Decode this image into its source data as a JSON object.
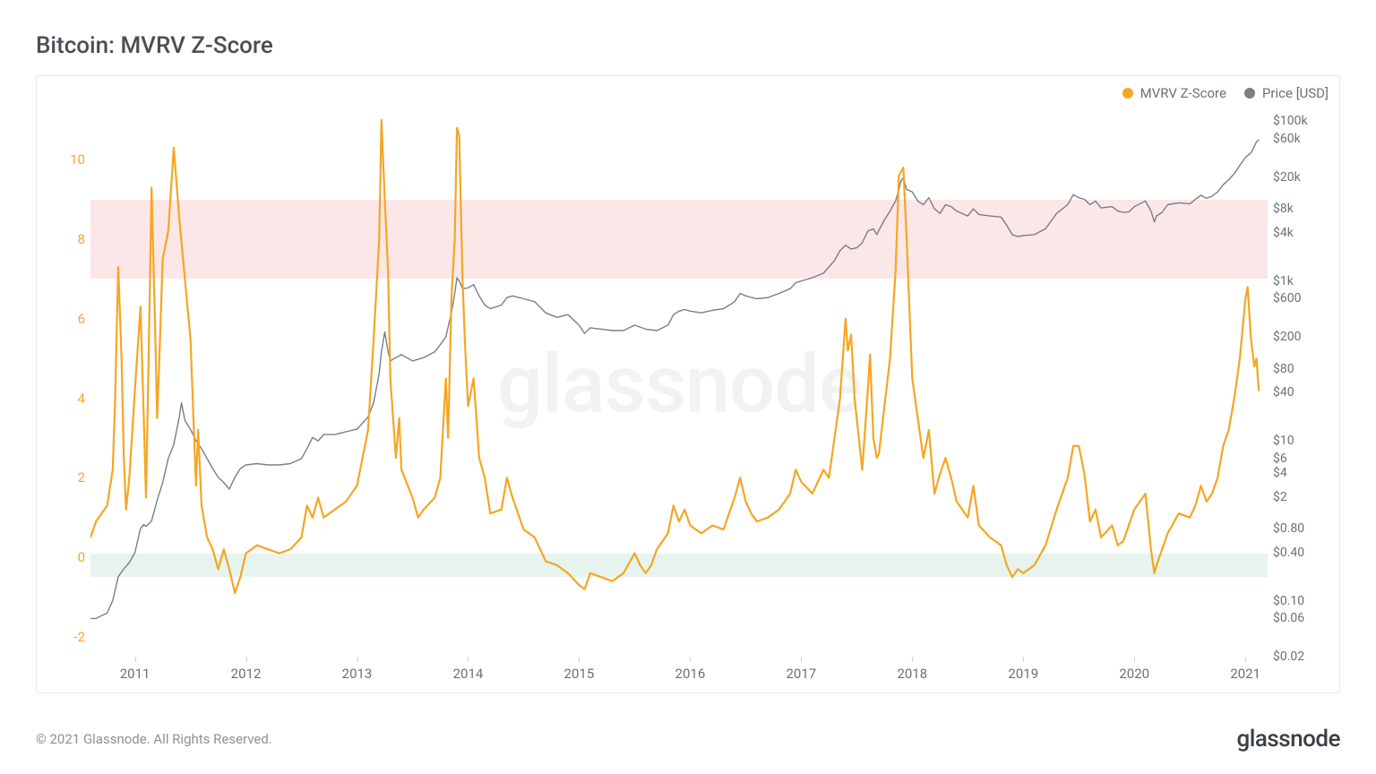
{
  "title": "Bitcoin: MVRV Z-Score",
  "copyright": "© 2021 Glassnode. All Rights Reserved.",
  "brand": "glassnode",
  "watermark": "glassnode",
  "legend": {
    "series1": {
      "label": "MVRV Z-Score",
      "color": "#f5a623"
    },
    "series2": {
      "label": "Price [USD]",
      "color": "#7a7f86"
    }
  },
  "chart": {
    "type": "dual-axis-line",
    "background": "#ffffff",
    "border_color": "#e8eaee",
    "x_axis": {
      "min_year": 2010.6,
      "max_year": 2021.2,
      "ticks": [
        2011,
        2012,
        2013,
        2014,
        2015,
        2016,
        2017,
        2018,
        2019,
        2020,
        2021
      ]
    },
    "left_axis": {
      "color": "#f5a623",
      "min": -2.5,
      "max": 11.2,
      "ticks": [
        -2,
        0,
        2,
        4,
        6,
        8,
        10
      ]
    },
    "right_axis": {
      "color": "#6a7078",
      "type": "log",
      "min": 0.02,
      "max": 130000,
      "ticks": [
        {
          "v": 0.02,
          "l": "$0.02"
        },
        {
          "v": 0.06,
          "l": "$0.06"
        },
        {
          "v": 0.1,
          "l": "$0.10"
        },
        {
          "v": 0.4,
          "l": "$0.40"
        },
        {
          "v": 0.8,
          "l": "$0.80"
        },
        {
          "v": 2,
          "l": "$2"
        },
        {
          "v": 4,
          "l": "$4"
        },
        {
          "v": 6,
          "l": "$6"
        },
        {
          "v": 10,
          "l": "$10"
        },
        {
          "v": 40,
          "l": "$40"
        },
        {
          "v": 80,
          "l": "$80"
        },
        {
          "v": 200,
          "l": "$200"
        },
        {
          "v": 600,
          "l": "$600"
        },
        {
          "v": 1000,
          "l": "$1k"
        },
        {
          "v": 4000,
          "l": "$4k"
        },
        {
          "v": 8000,
          "l": "$8k"
        },
        {
          "v": 20000,
          "l": "$20k"
        },
        {
          "v": 60000,
          "l": "$60k"
        },
        {
          "v": 100000,
          "l": "$100k"
        }
      ]
    },
    "zones": [
      {
        "axis": "left",
        "from": 7.0,
        "to": 9.0,
        "color": "#fbe7e7"
      },
      {
        "axis": "left",
        "from": -0.5,
        "to": 0.1,
        "color": "#e6f4ed"
      }
    ],
    "mvrv_color": "#f5a623",
    "mvrv_line_width": 2.2,
    "mvrv": [
      [
        2010.6,
        0.5
      ],
      [
        2010.65,
        0.9
      ],
      [
        2010.7,
        1.1
      ],
      [
        2010.75,
        1.3
      ],
      [
        2010.8,
        2.2
      ],
      [
        2010.82,
        3.8
      ],
      [
        2010.85,
        7.3
      ],
      [
        2010.88,
        5.0
      ],
      [
        2010.9,
        2.5
      ],
      [
        2010.92,
        1.2
      ],
      [
        2010.95,
        2.0
      ],
      [
        2011.0,
        4.2
      ],
      [
        2011.05,
        6.3
      ],
      [
        2011.08,
        3.5
      ],
      [
        2011.1,
        1.5
      ],
      [
        2011.12,
        4.5
      ],
      [
        2011.15,
        9.3
      ],
      [
        2011.18,
        6.0
      ],
      [
        2011.2,
        3.5
      ],
      [
        2011.22,
        5.0
      ],
      [
        2011.25,
        7.5
      ],
      [
        2011.3,
        8.2
      ],
      [
        2011.35,
        10.3
      ],
      [
        2011.4,
        8.5
      ],
      [
        2011.45,
        7.0
      ],
      [
        2011.5,
        5.5
      ],
      [
        2011.55,
        1.8
      ],
      [
        2011.57,
        3.2
      ],
      [
        2011.6,
        1.3
      ],
      [
        2011.65,
        0.5
      ],
      [
        2011.7,
        0.2
      ],
      [
        2011.75,
        -0.3
      ],
      [
        2011.8,
        0.2
      ],
      [
        2011.85,
        -0.3
      ],
      [
        2011.9,
        -0.9
      ],
      [
        2011.95,
        -0.5
      ],
      [
        2012.0,
        0.1
      ],
      [
        2012.1,
        0.3
      ],
      [
        2012.2,
        0.2
      ],
      [
        2012.3,
        0.1
      ],
      [
        2012.4,
        0.2
      ],
      [
        2012.5,
        0.5
      ],
      [
        2012.55,
        1.3
      ],
      [
        2012.6,
        1.0
      ],
      [
        2012.65,
        1.5
      ],
      [
        2012.7,
        1.0
      ],
      [
        2012.8,
        1.2
      ],
      [
        2012.9,
        1.4
      ],
      [
        2013.0,
        1.8
      ],
      [
        2013.05,
        2.5
      ],
      [
        2013.1,
        3.2
      ],
      [
        2013.15,
        5.5
      ],
      [
        2013.2,
        8.0
      ],
      [
        2013.22,
        11.0
      ],
      [
        2013.25,
        9.0
      ],
      [
        2013.28,
        7.2
      ],
      [
        2013.3,
        4.5
      ],
      [
        2013.35,
        2.5
      ],
      [
        2013.38,
        3.5
      ],
      [
        2013.4,
        2.2
      ],
      [
        2013.5,
        1.5
      ],
      [
        2013.55,
        1.0
      ],
      [
        2013.6,
        1.2
      ],
      [
        2013.7,
        1.5
      ],
      [
        2013.75,
        2.0
      ],
      [
        2013.8,
        4.5
      ],
      [
        2013.82,
        3.0
      ],
      [
        2013.85,
        6.5
      ],
      [
        2013.88,
        8.0
      ],
      [
        2013.9,
        10.8
      ],
      [
        2013.92,
        10.6
      ],
      [
        2013.95,
        7.0
      ],
      [
        2013.97,
        5.5
      ],
      [
        2014.0,
        3.8
      ],
      [
        2014.05,
        4.5
      ],
      [
        2014.1,
        2.5
      ],
      [
        2014.15,
        2.0
      ],
      [
        2014.2,
        1.1
      ],
      [
        2014.3,
        1.2
      ],
      [
        2014.35,
        2.0
      ],
      [
        2014.4,
        1.5
      ],
      [
        2014.5,
        0.7
      ],
      [
        2014.6,
        0.5
      ],
      [
        2014.7,
        -0.1
      ],
      [
        2014.8,
        -0.2
      ],
      [
        2014.9,
        -0.4
      ],
      [
        2015.0,
        -0.7
      ],
      [
        2015.05,
        -0.8
      ],
      [
        2015.1,
        -0.4
      ],
      [
        2015.2,
        -0.5
      ],
      [
        2015.3,
        -0.6
      ],
      [
        2015.4,
        -0.4
      ],
      [
        2015.5,
        0.1
      ],
      [
        2015.55,
        -0.2
      ],
      [
        2015.6,
        -0.4
      ],
      [
        2015.65,
        -0.2
      ],
      [
        2015.7,
        0.2
      ],
      [
        2015.8,
        0.6
      ],
      [
        2015.85,
        1.3
      ],
      [
        2015.9,
        0.9
      ],
      [
        2015.95,
        1.2
      ],
      [
        2016.0,
        0.8
      ],
      [
        2016.1,
        0.6
      ],
      [
        2016.2,
        0.8
      ],
      [
        2016.3,
        0.7
      ],
      [
        2016.4,
        1.5
      ],
      [
        2016.45,
        2.0
      ],
      [
        2016.5,
        1.4
      ],
      [
        2016.55,
        1.1
      ],
      [
        2016.6,
        0.9
      ],
      [
        2016.7,
        1.0
      ],
      [
        2016.8,
        1.2
      ],
      [
        2016.9,
        1.6
      ],
      [
        2016.95,
        2.2
      ],
      [
        2017.0,
        1.9
      ],
      [
        2017.1,
        1.6
      ],
      [
        2017.2,
        2.2
      ],
      [
        2017.25,
        2.0
      ],
      [
        2017.3,
        3.0
      ],
      [
        2017.35,
        4.0
      ],
      [
        2017.4,
        6.0
      ],
      [
        2017.42,
        5.2
      ],
      [
        2017.45,
        5.6
      ],
      [
        2017.48,
        4.0
      ],
      [
        2017.5,
        3.5
      ],
      [
        2017.55,
        2.2
      ],
      [
        2017.6,
        4.2
      ],
      [
        2017.62,
        5.1
      ],
      [
        2017.65,
        3.0
      ],
      [
        2017.68,
        2.5
      ],
      [
        2017.7,
        2.6
      ],
      [
        2017.75,
        3.8
      ],
      [
        2017.8,
        5.0
      ],
      [
        2017.85,
        7.2
      ],
      [
        2017.88,
        9.6
      ],
      [
        2017.92,
        9.8
      ],
      [
        2017.95,
        8.0
      ],
      [
        2018.0,
        4.5
      ],
      [
        2018.05,
        3.5
      ],
      [
        2018.1,
        2.5
      ],
      [
        2018.15,
        3.2
      ],
      [
        2018.2,
        1.6
      ],
      [
        2018.25,
        2.1
      ],
      [
        2018.3,
        2.5
      ],
      [
        2018.35,
        2.0
      ],
      [
        2018.4,
        1.4
      ],
      [
        2018.5,
        1.0
      ],
      [
        2018.55,
        1.8
      ],
      [
        2018.6,
        0.8
      ],
      [
        2018.7,
        0.5
      ],
      [
        2018.8,
        0.3
      ],
      [
        2018.85,
        -0.2
      ],
      [
        2018.9,
        -0.5
      ],
      [
        2018.95,
        -0.3
      ],
      [
        2019.0,
        -0.4
      ],
      [
        2019.1,
        -0.2
      ],
      [
        2019.2,
        0.3
      ],
      [
        2019.3,
        1.2
      ],
      [
        2019.4,
        2.0
      ],
      [
        2019.45,
        2.8
      ],
      [
        2019.5,
        2.8
      ],
      [
        2019.55,
        2.1
      ],
      [
        2019.6,
        0.9
      ],
      [
        2019.65,
        1.2
      ],
      [
        2019.7,
        0.5
      ],
      [
        2019.8,
        0.8
      ],
      [
        2019.85,
        0.3
      ],
      [
        2019.9,
        0.4
      ],
      [
        2019.95,
        0.8
      ],
      [
        2020.0,
        1.2
      ],
      [
        2020.1,
        1.6
      ],
      [
        2020.15,
        0.2
      ],
      [
        2020.18,
        -0.4
      ],
      [
        2020.2,
        -0.2
      ],
      [
        2020.25,
        0.2
      ],
      [
        2020.3,
        0.6
      ],
      [
        2020.4,
        1.1
      ],
      [
        2020.5,
        1.0
      ],
      [
        2020.55,
        1.3
      ],
      [
        2020.6,
        1.8
      ],
      [
        2020.65,
        1.4
      ],
      [
        2020.7,
        1.6
      ],
      [
        2020.75,
        2.0
      ],
      [
        2020.8,
        2.8
      ],
      [
        2020.85,
        3.2
      ],
      [
        2020.9,
        4.0
      ],
      [
        2020.95,
        5.0
      ],
      [
        2021.0,
        6.5
      ],
      [
        2021.02,
        6.8
      ],
      [
        2021.05,
        5.5
      ],
      [
        2021.08,
        4.8
      ],
      [
        2021.1,
        5.0
      ],
      [
        2021.12,
        4.2
      ]
    ],
    "price_color": "#7a7f86",
    "price_line_width": 1.4,
    "price": [
      [
        2010.6,
        0.06
      ],
      [
        2010.65,
        0.06
      ],
      [
        2010.7,
        0.065
      ],
      [
        2010.75,
        0.07
      ],
      [
        2010.8,
        0.1
      ],
      [
        2010.85,
        0.2
      ],
      [
        2010.9,
        0.25
      ],
      [
        2010.95,
        0.3
      ],
      [
        2011.0,
        0.4
      ],
      [
        2011.05,
        0.8
      ],
      [
        2011.08,
        0.9
      ],
      [
        2011.1,
        0.85
      ],
      [
        2011.15,
        1.0
      ],
      [
        2011.2,
        1.8
      ],
      [
        2011.25,
        3.0
      ],
      [
        2011.3,
        6.0
      ],
      [
        2011.35,
        9.0
      ],
      [
        2011.4,
        20
      ],
      [
        2011.42,
        30
      ],
      [
        2011.45,
        18
      ],
      [
        2011.5,
        14
      ],
      [
        2011.55,
        10
      ],
      [
        2011.6,
        8
      ],
      [
        2011.65,
        6
      ],
      [
        2011.7,
        4.5
      ],
      [
        2011.75,
        3.5
      ],
      [
        2011.8,
        3.0
      ],
      [
        2011.85,
        2.5
      ],
      [
        2011.9,
        3.5
      ],
      [
        2011.95,
        4.5
      ],
      [
        2012.0,
        5.0
      ],
      [
        2012.1,
        5.2
      ],
      [
        2012.2,
        5.0
      ],
      [
        2012.3,
        5.0
      ],
      [
        2012.4,
        5.2
      ],
      [
        2012.5,
        6.0
      ],
      [
        2012.55,
        8.0
      ],
      [
        2012.6,
        11
      ],
      [
        2012.65,
        10
      ],
      [
        2012.7,
        12
      ],
      [
        2012.8,
        12
      ],
      [
        2012.9,
        13
      ],
      [
        2013.0,
        14
      ],
      [
        2013.1,
        20
      ],
      [
        2013.15,
        30
      ],
      [
        2013.2,
        70
      ],
      [
        2013.22,
        130
      ],
      [
        2013.25,
        230
      ],
      [
        2013.28,
        130
      ],
      [
        2013.3,
        100
      ],
      [
        2013.35,
        110
      ],
      [
        2013.4,
        120
      ],
      [
        2013.5,
        100
      ],
      [
        2013.6,
        110
      ],
      [
        2013.7,
        130
      ],
      [
        2013.75,
        160
      ],
      [
        2013.8,
        200
      ],
      [
        2013.85,
        400
      ],
      [
        2013.88,
        700
      ],
      [
        2013.9,
        1100
      ],
      [
        2013.92,
        1000
      ],
      [
        2013.95,
        800
      ],
      [
        2014.0,
        820
      ],
      [
        2014.05,
        900
      ],
      [
        2014.1,
        650
      ],
      [
        2014.15,
        500
      ],
      [
        2014.2,
        450
      ],
      [
        2014.3,
        500
      ],
      [
        2014.35,
        620
      ],
      [
        2014.4,
        650
      ],
      [
        2014.5,
        600
      ],
      [
        2014.6,
        550
      ],
      [
        2014.7,
        400
      ],
      [
        2014.8,
        350
      ],
      [
        2014.9,
        380
      ],
      [
        2015.0,
        280
      ],
      [
        2015.05,
        220
      ],
      [
        2015.1,
        260
      ],
      [
        2015.2,
        250
      ],
      [
        2015.3,
        240
      ],
      [
        2015.4,
        240
      ],
      [
        2015.5,
        280
      ],
      [
        2015.6,
        250
      ],
      [
        2015.7,
        240
      ],
      [
        2015.8,
        280
      ],
      [
        2015.85,
        380
      ],
      [
        2015.9,
        420
      ],
      [
        2015.95,
        440
      ],
      [
        2016.0,
        420
      ],
      [
        2016.1,
        400
      ],
      [
        2016.2,
        430
      ],
      [
        2016.3,
        450
      ],
      [
        2016.4,
        550
      ],
      [
        2016.45,
        700
      ],
      [
        2016.5,
        650
      ],
      [
        2016.6,
        600
      ],
      [
        2016.7,
        620
      ],
      [
        2016.8,
        700
      ],
      [
        2016.9,
        800
      ],
      [
        2016.95,
        950
      ],
      [
        2017.0,
        1000
      ],
      [
        2017.1,
        1100
      ],
      [
        2017.2,
        1250
      ],
      [
        2017.3,
        1800
      ],
      [
        2017.35,
        2400
      ],
      [
        2017.4,
        2800
      ],
      [
        2017.45,
        2500
      ],
      [
        2017.5,
        2600
      ],
      [
        2017.55,
        3000
      ],
      [
        2017.6,
        4200
      ],
      [
        2017.65,
        4500
      ],
      [
        2017.68,
        3800
      ],
      [
        2017.7,
        4300
      ],
      [
        2017.75,
        5800
      ],
      [
        2017.8,
        7500
      ],
      [
        2017.85,
        10000
      ],
      [
        2017.88,
        14000
      ],
      [
        2017.9,
        18000
      ],
      [
        2017.92,
        19500
      ],
      [
        2017.95,
        14000
      ],
      [
        2018.0,
        13000
      ],
      [
        2018.05,
        10000
      ],
      [
        2018.1,
        9000
      ],
      [
        2018.15,
        11000
      ],
      [
        2018.2,
        8000
      ],
      [
        2018.25,
        7000
      ],
      [
        2018.3,
        9000
      ],
      [
        2018.35,
        8500
      ],
      [
        2018.4,
        7500
      ],
      [
        2018.5,
        6500
      ],
      [
        2018.55,
        8000
      ],
      [
        2018.6,
        6800
      ],
      [
        2018.7,
        6500
      ],
      [
        2018.8,
        6300
      ],
      [
        2018.85,
        5000
      ],
      [
        2018.9,
        3800
      ],
      [
        2018.95,
        3600
      ],
      [
        2019.0,
        3700
      ],
      [
        2019.1,
        3800
      ],
      [
        2019.2,
        4500
      ],
      [
        2019.3,
        7000
      ],
      [
        2019.4,
        9000
      ],
      [
        2019.45,
        12000
      ],
      [
        2019.5,
        11000
      ],
      [
        2019.55,
        10500
      ],
      [
        2019.6,
        9000
      ],
      [
        2019.65,
        10000
      ],
      [
        2019.7,
        8200
      ],
      [
        2019.8,
        8500
      ],
      [
        2019.85,
        7500
      ],
      [
        2019.9,
        7200
      ],
      [
        2019.95,
        7300
      ],
      [
        2020.0,
        8500
      ],
      [
        2020.1,
        10000
      ],
      [
        2020.15,
        7500
      ],
      [
        2020.18,
        5500
      ],
      [
        2020.2,
        6500
      ],
      [
        2020.25,
        7200
      ],
      [
        2020.3,
        9000
      ],
      [
        2020.4,
        9500
      ],
      [
        2020.5,
        9200
      ],
      [
        2020.55,
        10500
      ],
      [
        2020.6,
        11800
      ],
      [
        2020.65,
        10800
      ],
      [
        2020.7,
        11500
      ],
      [
        2020.75,
        13000
      ],
      [
        2020.8,
        16000
      ],
      [
        2020.85,
        18500
      ],
      [
        2020.9,
        22000
      ],
      [
        2020.95,
        28000
      ],
      [
        2021.0,
        35000
      ],
      [
        2021.05,
        40000
      ],
      [
        2021.08,
        48000
      ],
      [
        2021.1,
        55000
      ],
      [
        2021.12,
        58000
      ]
    ]
  }
}
